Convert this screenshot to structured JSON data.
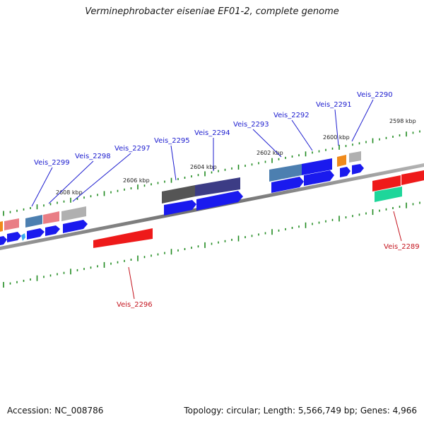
{
  "title": "Verminephrobacter eiseniae EF01-2, complete genome",
  "footer": {
    "accession": "Accession: NC_008786",
    "summary": "Topology: circular; Length: 5,566,749 bp; Genes: 4,966"
  },
  "colors": {
    "backbone": "#7a7a7a",
    "tick": "#1f8a1f",
    "cds_forward": "#1a1aee",
    "cds_reverse": "#ee1a1a",
    "label_forward": "#1c1ccf",
    "label_reverse": "#c4141e"
  },
  "position_labels": [
    "2608 kbp",
    "2606 kbp",
    "2604 kbp",
    "2602 kbp",
    "2600 kbp",
    "2598 kbp"
  ],
  "gene_labels": {
    "veis_2299": "Veis_2299",
    "veis_2298": "Veis_2298",
    "veis_2297": "Veis_2297",
    "veis_2295": "Veis_2295",
    "veis_2294": "Veis_2294",
    "veis_2293": "Veis_2293",
    "veis_2292": "Veis_2292",
    "veis_2291": "Veis_2291",
    "veis_2290": "Veis_2290",
    "veis_2296": "Veis_2296",
    "veis_2289": "Veis_2289"
  }
}
